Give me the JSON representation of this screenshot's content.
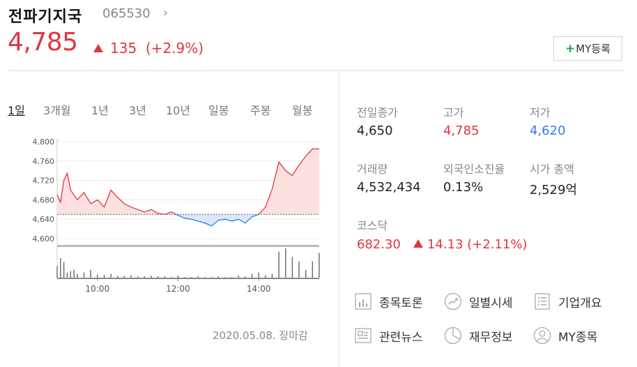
{
  "header": {
    "name": "전파기지국",
    "code": "065530",
    "price": "4,785",
    "change": "135",
    "change_pct": "(+2.9%)",
    "my_button": "MY등록"
  },
  "tabs": [
    "1일",
    "3개월",
    "1년",
    "3년",
    "10년",
    "일봉",
    "주봉",
    "월봉"
  ],
  "active_tab": "1일",
  "chart_data": {
    "type": "line",
    "x_ticks": [
      "10:00",
      "12:00",
      "14:00"
    ],
    "y_ticks": [
      "4,800",
      "4,760",
      "4,720",
      "4,680",
      "4,640",
      "4,600"
    ],
    "ylim": [
      4600,
      4800
    ],
    "reference_price": 4650,
    "x": [
      "09:00",
      "09:05",
      "09:10",
      "09:15",
      "09:20",
      "09:25",
      "09:30",
      "09:40",
      "09:50",
      "10:00",
      "10:10",
      "10:20",
      "10:30",
      "10:40",
      "10:50",
      "11:00",
      "11:10",
      "11:20",
      "11:30",
      "11:40",
      "11:50",
      "12:00",
      "12:10",
      "12:20",
      "12:30",
      "12:40",
      "12:50",
      "13:00",
      "13:10",
      "13:20",
      "13:30",
      "13:40",
      "13:50",
      "14:00",
      "14:10",
      "14:20",
      "14:30",
      "14:40",
      "14:50",
      "15:00",
      "15:10",
      "15:20",
      "15:30"
    ],
    "y": [
      4690,
      4675,
      4720,
      4735,
      4700,
      4690,
      4680,
      4695,
      4672,
      4680,
      4665,
      4700,
      4685,
      4672,
      4665,
      4660,
      4655,
      4660,
      4652,
      4650,
      4655,
      4648,
      4642,
      4640,
      4636,
      4632,
      4626,
      4638,
      4640,
      4636,
      4640,
      4632,
      4645,
      4650,
      4665,
      4702,
      4758,
      4740,
      4730,
      4752,
      4770,
      4785,
      4785
    ],
    "volume": [
      18,
      30,
      24,
      8,
      10,
      12,
      6,
      8,
      12,
      5,
      4,
      6,
      3,
      3,
      4,
      2,
      2,
      3,
      2,
      2,
      1,
      3,
      1,
      1,
      2,
      1,
      1,
      2,
      1,
      1,
      3,
      2,
      6,
      8,
      4,
      6,
      40,
      45,
      32,
      25,
      12,
      25,
      38
    ],
    "colors": {
      "up": "#e0363f",
      "down": "#2d7be8",
      "up_fill": "#fde0e0",
      "down_fill": "#dbe8fb"
    }
  },
  "stats": [
    {
      "label": "전일종가",
      "value": "4,650",
      "color": "normal"
    },
    {
      "label": "고가",
      "value": "4,785",
      "color": "red"
    },
    {
      "label": "저가",
      "value": "4,620",
      "color": "blue"
    },
    {
      "label": "거래량",
      "value": "4,532,434",
      "color": "normal"
    },
    {
      "label": "외국인소진율",
      "value": "0.13%",
      "color": "normal"
    },
    {
      "label": "시가 총액",
      "value": "2,529억",
      "color": "normal"
    }
  ],
  "index": {
    "label": "코스닥",
    "value": "682.30",
    "change": "14.13",
    "pct": "(+2.11%)"
  },
  "links": [
    {
      "label": "종목토론",
      "icon": "bar-chart-icon"
    },
    {
      "label": "일별시세",
      "icon": "trend-up-icon"
    },
    {
      "label": "기업개요",
      "icon": "list-icon"
    },
    {
      "label": "관련뉴스",
      "icon": "news-icon"
    },
    {
      "label": "재무정보",
      "icon": "pie-chart-icon"
    },
    {
      "label": "MY종목",
      "icon": "user-icon"
    }
  ],
  "footer": "2020.05.08. 장마감"
}
